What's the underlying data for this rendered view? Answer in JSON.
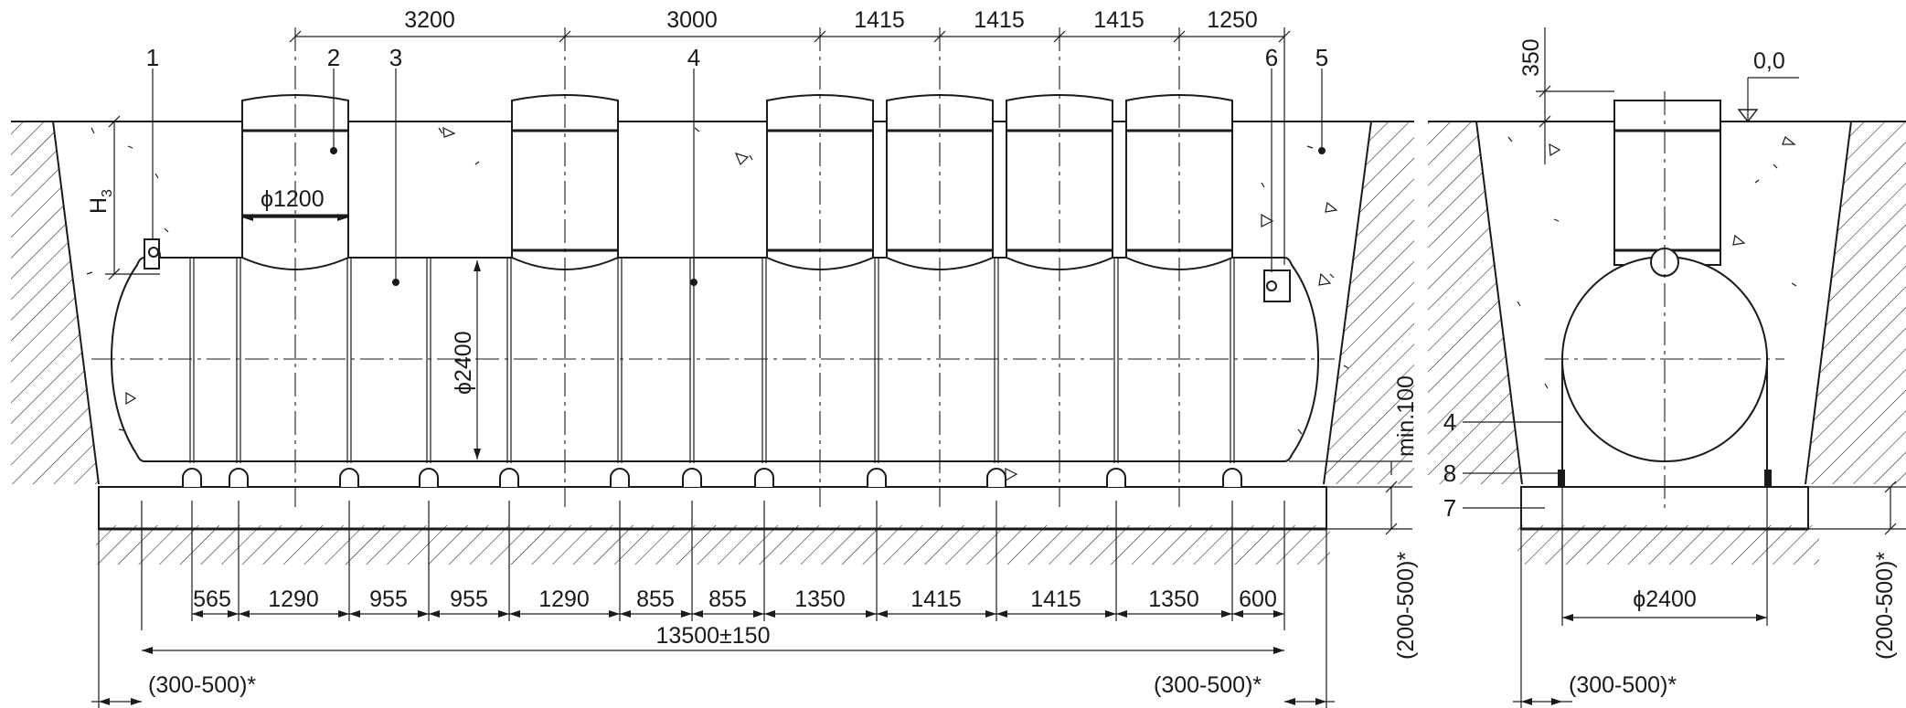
{
  "top_dimensions": [
    "3200",
    "3000",
    "1415",
    "1415",
    "1415",
    "1250"
  ],
  "bottom_dimensions": [
    "565",
    "1290",
    "955",
    "955",
    "1290",
    "855",
    "855",
    "1350",
    "1415",
    "1415",
    "1350",
    "600"
  ],
  "total_length": "13500±150",
  "diameters": {
    "neck": "ϕ1200",
    "tank": "ϕ2400",
    "section": "ϕ2400"
  },
  "elevation_labels": {
    "burial": "H",
    "burial_sub": "3",
    "zero_mark": "0,0",
    "neck_height": "350",
    "min_gap": "min.100"
  },
  "side_offsets": {
    "left": "(300-500)*",
    "right": "(300-500)*",
    "section": "(300-500)*"
  },
  "slab_depth": {
    "main": "(200-500)*",
    "section": "(200-500)*"
  },
  "callouts": [
    "1",
    "2",
    "3",
    "4",
    "5",
    "6"
  ],
  "section_callouts": [
    "4",
    "8",
    "7"
  ]
}
